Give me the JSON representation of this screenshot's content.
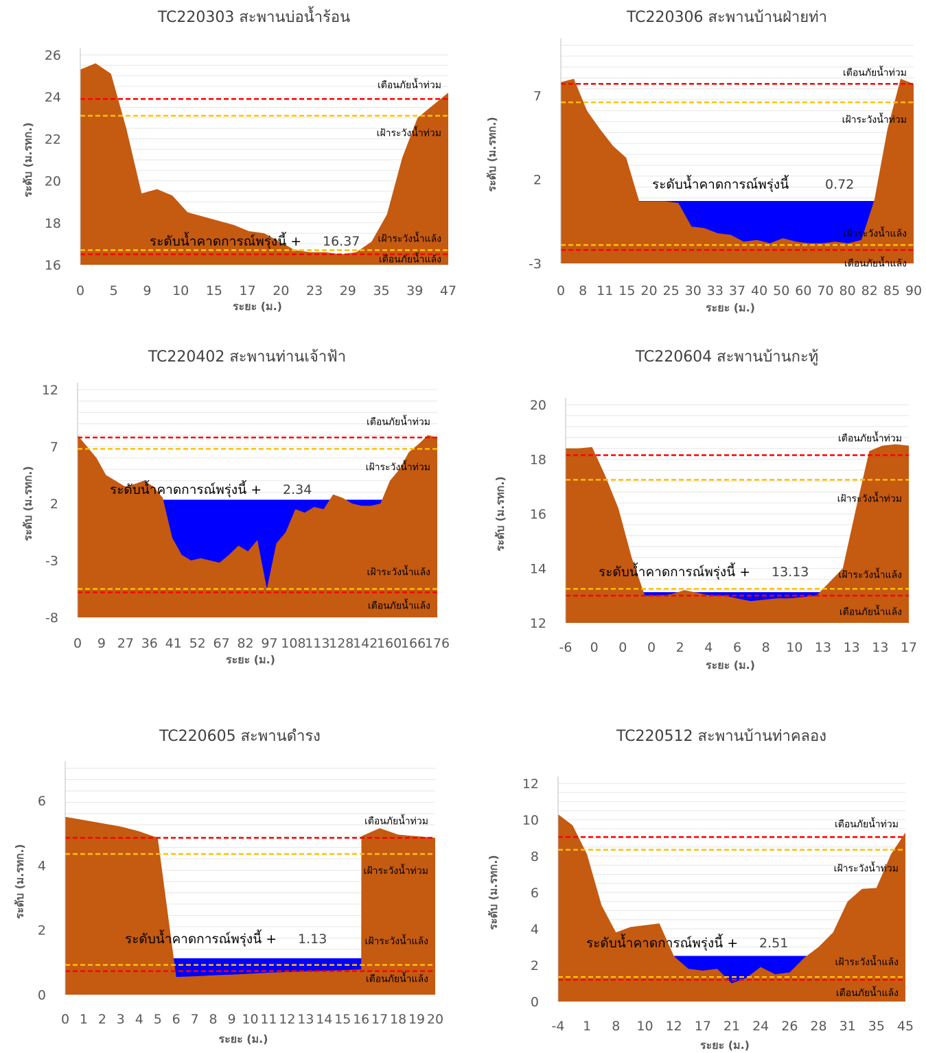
{
  "chart_data": [
    {
      "type": "area",
      "title": "TC220303 สะพานบ่อน้ำร้อน",
      "xlabel": "ระยะ (ม.)",
      "ylabel": "ระดับ (ม.รทก.)",
      "ylim": [
        16,
        26
      ],
      "yticks": [
        "16",
        "18",
        "20",
        "22",
        "24",
        "26"
      ],
      "categories": [
        "0",
        "5",
        "9",
        "10",
        "15",
        "17",
        "20",
        "23",
        "29",
        "35",
        "39",
        "47"
      ],
      "ground": [
        25.3,
        25.6,
        25.1,
        22.5,
        19.4,
        19.6,
        19.3,
        18.5,
        18.3,
        18.1,
        17.9,
        17.6,
        17.5,
        17.1,
        16.7,
        16.6,
        16.6,
        16.5,
        16.6,
        17.1,
        18.4,
        21.1,
        23.0,
        23.6,
        24.2
      ],
      "water_level": 16.37,
      "forecast_label": "ระดับน้ำคาดการณ์พรุ่งนี้ +",
      "forecast_value": "16.37",
      "lines": [
        {
          "name": "เตือนภัยน้ำท่วม",
          "value": 23.9,
          "color": "#ff0000"
        },
        {
          "name": "เฝ้าระวังน้ำท่วม",
          "value": 23.1,
          "color": "#ffc000"
        },
        {
          "name": "เฝ้าระวังน้ำแล้ง",
          "value": 16.7,
          "color": "#ffc000"
        },
        {
          "name": "เตือนภัยน้ำแล้ง",
          "value": 16.5,
          "color": "#ff0000"
        }
      ]
    },
    {
      "type": "area",
      "title": "TC220306 สะพานบ้านฝ่ายท่า",
      "xlabel": "ระยะ (ม.)",
      "ylabel": "ระดับ (ม.รทก.)",
      "ylim": [
        -3,
        10
      ],
      "yticks": [
        "-3",
        "2",
        "7"
      ],
      "categories": [
        "0",
        "8",
        "11",
        "15",
        "20",
        "25",
        "30",
        "33",
        "37",
        "40",
        "50",
        "60",
        "70",
        "80",
        "82",
        "85",
        "90"
      ],
      "ground": [
        7.8,
        8.0,
        6.1,
        5.0,
        4.0,
        3.3,
        0.7,
        0.7,
        0.7,
        0.6,
        -0.8,
        -0.9,
        -1.2,
        -1.3,
        -1.7,
        -1.6,
        -1.8,
        -1.5,
        -1.7,
        -1.8,
        -1.8,
        -1.7,
        -1.8,
        -1.6,
        0.8,
        5.0,
        8.0,
        7.7
      ],
      "water_level": 0.72,
      "forecast_label": "ระดับน้ำคาดการณ์พรุ่งนี้",
      "forecast_value": "0.72",
      "lines": [
        {
          "name": "เตือนภัยน้ำท่วม",
          "value": 7.7,
          "color": "#ff0000"
        },
        {
          "name": "เฝ้าระวังน้ำท่วม",
          "value": 6.6,
          "color": "#ffc000"
        },
        {
          "name": "เฝ้าระวังน้ำแล้ง",
          "value": -1.9,
          "color": "#ffc000"
        },
        {
          "name": "เตือนภัยน้ำแล้ง",
          "value": -2.2,
          "color": "#ff0000"
        }
      ]
    },
    {
      "type": "area",
      "title": "TC220402 สะพานท่านเจ้าฟ้า",
      "xlabel": "ระยะ (ม.)",
      "ylabel": "ระดับ (ม.รทก.)",
      "ylim": [
        -8,
        12
      ],
      "yticks": [
        "-8",
        "-3",
        "2",
        "7",
        "12"
      ],
      "categories": [
        "0",
        "9",
        "27",
        "36",
        "41",
        "52",
        "67",
        "82",
        "97",
        "108",
        "113",
        "128",
        "142",
        "160",
        "166",
        "176"
      ],
      "ground": [
        8.0,
        7.0,
        6.0,
        4.5,
        4.0,
        3.5,
        3.7,
        4.0,
        3.5,
        2.5,
        -1.0,
        -2.5,
        -3.0,
        -2.8,
        -3.0,
        -3.2,
        -2.5,
        -1.7,
        -2.2,
        -1.2,
        -5.5,
        -1.5,
        -0.5,
        1.5,
        1.2,
        1.7,
        1.5,
        2.8,
        2.5,
        2.0,
        1.8,
        1.8,
        2.0,
        4.0,
        5.0,
        6.5,
        7.2,
        8.0,
        7.8
      ],
      "water_level": 2.34,
      "forecast_label": "ระดับน้ำคาดการณ์พรุ่งนี้ +",
      "forecast_value": "2.34",
      "lines": [
        {
          "name": "เตือนภัยน้ำท่วม",
          "value": 7.8,
          "color": "#ff0000"
        },
        {
          "name": "เฝ้าระวังน้ำท่วม",
          "value": 6.8,
          "color": "#ffc000"
        },
        {
          "name": "เฝ้าระวังน้ำแล้ง",
          "value": -5.5,
          "color": "#ffc000"
        },
        {
          "name": "เตือนภัยน้ำแล้ง",
          "value": -5.8,
          "color": "#ff0000"
        }
      ]
    },
    {
      "type": "area",
      "title": "TC220604 สะพานบ้านกะทู้",
      "xlabel": "ระยะ (ม.)",
      "ylabel": "ระดับ (ม.รทก.)",
      "ylim": [
        12,
        20
      ],
      "yticks": [
        "12",
        "14",
        "16",
        "18",
        "20"
      ],
      "categories": [
        "-6",
        "0",
        "0",
        "0",
        "2",
        "4",
        "6",
        "8",
        "10",
        "13",
        "13",
        "13",
        "17"
      ],
      "ground": [
        18.4,
        18.4,
        18.45,
        17.4,
        16.2,
        14.4,
        13.0,
        13.0,
        13.05,
        13.2,
        13.1,
        13.0,
        13.0,
        12.9,
        12.8,
        12.85,
        12.9,
        12.9,
        12.95,
        13.0,
        13.5,
        14.0,
        16.2,
        18.3,
        18.5,
        18.55,
        18.5
      ],
      "water_level": 13.13,
      "forecast_label": "ระดับน้ำคาดการณ์พรุ่งนี้ +",
      "forecast_value": "13.13",
      "lines": [
        {
          "name": "เตือนภัยน้ำท่วม",
          "value": 18.15,
          "color": "#ff0000"
        },
        {
          "name": "เฝ้าระวังน้ำท่วม",
          "value": 17.25,
          "color": "#ffc000"
        },
        {
          "name": "เฝ้าระวังน้ำแล้ง",
          "value": 13.25,
          "color": "#ffc000"
        },
        {
          "name": "เตือนภัยน้ำแล้ง",
          "value": 13.0,
          "color": "#ff0000"
        }
      ]
    },
    {
      "type": "area",
      "title": "TC220605 สะพานดำรง",
      "xlabel": "ระยะ (ม.)",
      "ylabel": "ระดับ (ม.รทก.)",
      "ylim": [
        0,
        7
      ],
      "yticks": [
        "0",
        "2",
        "4",
        "6"
      ],
      "categories": [
        "0",
        "1",
        "2",
        "3",
        "4",
        "5",
        "6",
        "7",
        "8",
        "9",
        "10",
        "11",
        "12",
        "13",
        "14",
        "15",
        "16",
        "17",
        "18",
        "19",
        "20"
      ],
      "xs": [
        0,
        1,
        2,
        3,
        4,
        5,
        6,
        7,
        8,
        9,
        10,
        11,
        12,
        13,
        14,
        15,
        16,
        16.01,
        17,
        18,
        19,
        20
      ],
      "ground": [
        5.5,
        5.4,
        5.3,
        5.2,
        5.05,
        4.85,
        0.55,
        0.57,
        0.6,
        0.62,
        0.65,
        0.68,
        0.7,
        0.72,
        0.74,
        0.76,
        0.78,
        4.9,
        5.15,
        4.95,
        4.9,
        4.85
      ],
      "water_level": 1.13,
      "forecast_label": "ระดับน้ำคาดการณ์พรุ่งนี้ +",
      "forecast_value": "1.13",
      "lines": [
        {
          "name": "เตือนภัยน้ำท่วม",
          "value": 4.85,
          "color": "#ff0000"
        },
        {
          "name": "เฝ้าระวังน้ำท่วม",
          "value": 4.35,
          "color": "#ffc000"
        },
        {
          "name": "เฝ้าระวังน้ำแล้ง",
          "value": 0.92,
          "color": "#ffc000"
        },
        {
          "name": "เตือนภัยน้ำแล้ง",
          "value": 0.73,
          "color": "#ff0000"
        }
      ]
    },
    {
      "type": "area",
      "title": "TC220512 สะพานบ้านท่าคลอง",
      "xlabel": "ระยะ (ม.)",
      "ylabel": "ระดับ (ม.รทก.)",
      "ylim": [
        0,
        12
      ],
      "yticks": [
        "0",
        "2",
        "4",
        "6",
        "8",
        "10",
        "12"
      ],
      "categories": [
        "-4",
        "1",
        "8",
        "10",
        "12",
        "17",
        "21",
        "24",
        "26",
        "28",
        "31",
        "35",
        "45"
      ],
      "ground": [
        10.3,
        9.7,
        8.1,
        5.3,
        3.8,
        4.1,
        4.2,
        4.3,
        2.5,
        1.8,
        1.7,
        1.8,
        1.0,
        1.3,
        1.9,
        1.5,
        1.6,
        2.4,
        3.0,
        3.8,
        5.5,
        6.2,
        6.25,
        8.1,
        9.3
      ],
      "water_level": 2.51,
      "forecast_label": "ระดับน้ำคาดการณ์พรุ่งนี้ +",
      "forecast_value": "2.51",
      "lines": [
        {
          "name": "เตือนภัยน้ำท่วม",
          "value": 9.05,
          "color": "#ff0000"
        },
        {
          "name": "เฝ้าระวังน้ำท่วม",
          "value": 8.35,
          "color": "#ffc000"
        },
        {
          "name": "เฝ้าระวังน้ำแล้ง",
          "value": 1.35,
          "color": "#ffc000"
        },
        {
          "name": "เตือนภัยน้ำแล้ง",
          "value": 1.2,
          "color": "#ff0000"
        }
      ]
    }
  ]
}
